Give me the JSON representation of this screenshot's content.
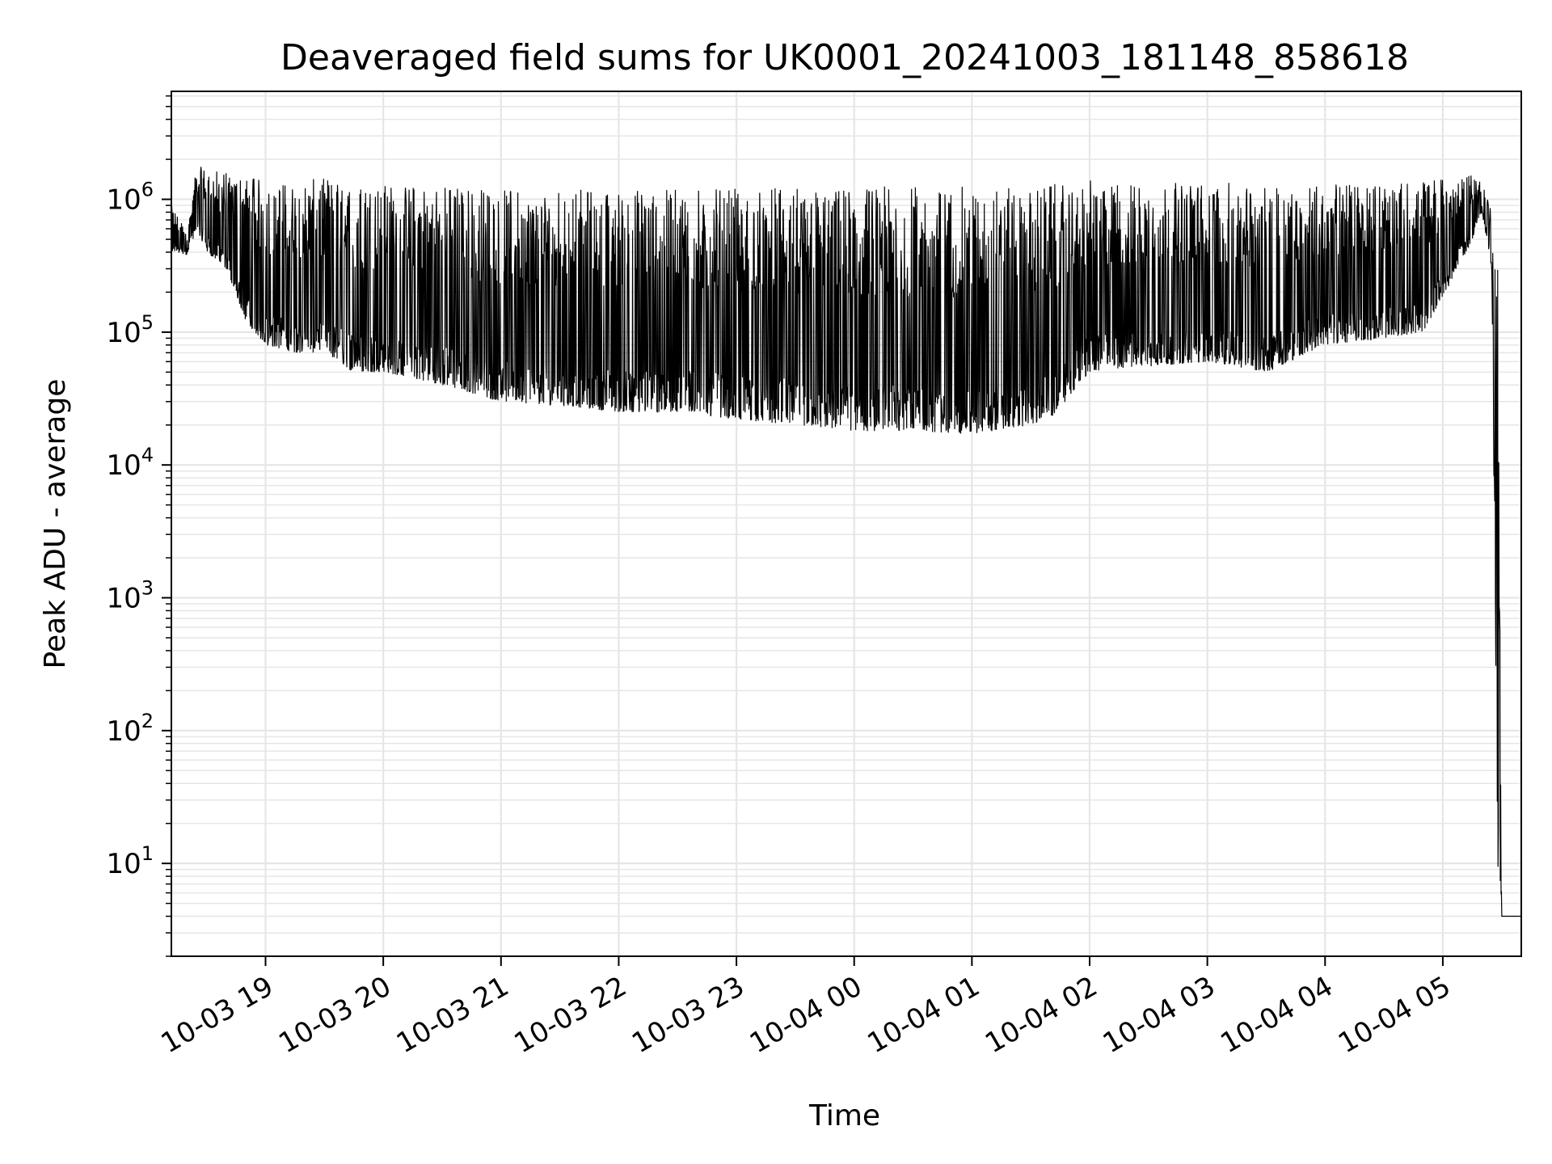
{
  "chart_data": {
    "type": "line",
    "title": "Deaveraged field sums for UK0001_20241003_181148_858618",
    "xlabel": "Time",
    "ylabel": "Peak ADU - average",
    "y_scale": "log",
    "grid": true,
    "grid_color": "#e6e6e6",
    "line_color": "#000000",
    "xlim": [
      "2024-10-03 18:12",
      "2024-10-04 05:40"
    ],
    "ylim": [
      2,
      6500000.0
    ],
    "x_ticks": [
      {
        "value": "2024-10-03 19:00",
        "label": "10-03 19"
      },
      {
        "value": "2024-10-03 20:00",
        "label": "10-03 20"
      },
      {
        "value": "2024-10-03 21:00",
        "label": "10-03 21"
      },
      {
        "value": "2024-10-03 22:00",
        "label": "10-03 22"
      },
      {
        "value": "2024-10-03 23:00",
        "label": "10-03 23"
      },
      {
        "value": "2024-10-04 00:00",
        "label": "10-04 00"
      },
      {
        "value": "2024-10-04 01:00",
        "label": "10-04 01"
      },
      {
        "value": "2024-10-04 02:00",
        "label": "10-04 02"
      },
      {
        "value": "2024-10-04 03:00",
        "label": "10-04 03"
      },
      {
        "value": "2024-10-04 04:00",
        "label": "10-04 04"
      },
      {
        "value": "2024-10-04 05:00",
        "label": "10-04 05"
      }
    ],
    "y_ticks": [
      {
        "value": 10,
        "base": "10",
        "exp": "1"
      },
      {
        "value": 100,
        "base": "10",
        "exp": "2"
      },
      {
        "value": 1000,
        "base": "10",
        "exp": "3"
      },
      {
        "value": 10000,
        "base": "10",
        "exp": "4"
      },
      {
        "value": 100000,
        "base": "10",
        "exp": "5"
      },
      {
        "value": 1000000,
        "base": "10",
        "exp": "6"
      }
    ],
    "series": [
      {
        "x": [
          "2024-10-03 18:12",
          "2024-10-03 18:20",
          "2024-10-03 18:25",
          "2024-10-03 18:30",
          "2024-10-03 18:40",
          "2024-10-03 18:50",
          "2024-10-03 19:00",
          "2024-10-03 19:15",
          "2024-10-03 19:30",
          "2024-10-03 19:45",
          "2024-10-03 20:00",
          "2024-10-03 20:30",
          "2024-10-03 21:00",
          "2024-10-03 21:30",
          "2024-10-03 22:00",
          "2024-10-03 22:30",
          "2024-10-03 23:00",
          "2024-10-03 23:30",
          "2024-10-04 00:00",
          "2024-10-04 00:30",
          "2024-10-04 01:00",
          "2024-10-04 01:30",
          "2024-10-04 01:40",
          "2024-10-04 02:00",
          "2024-10-04 02:30",
          "2024-10-04 03:00",
          "2024-10-04 03:30",
          "2024-10-04 04:00",
          "2024-10-04 04:30",
          "2024-10-04 04:50",
          "2024-10-04 05:05",
          "2024-10-04 05:15",
          "2024-10-04 05:20",
          "2024-10-04 05:25",
          "2024-10-04 05:28",
          "2024-10-04 05:30",
          "2024-10-04 05:40"
        ],
        "low": [
          400000,
          380000,
          600000,
          400000,
          300000,
          120000,
          80000,
          70000,
          70000,
          50000,
          50000,
          40000,
          30000,
          28000,
          25000,
          25000,
          22000,
          20000,
          18000,
          18000,
          17000,
          20000,
          22000,
          50000,
          55000,
          60000,
          50000,
          80000,
          90000,
          100000,
          250000,
          500000,
          800000,
          300000,
          10,
          4,
          4
        ],
        "high": [
          900000,
          600000,
          1800000,
          1700000,
          1600000,
          1500000,
          1400000,
          1300000,
          1500000,
          1300000,
          1300000,
          1300000,
          1200000,
          1200000,
          1200000,
          1200000,
          1200000,
          1250000,
          1250000,
          1250000,
          1250000,
          1200000,
          1300000,
          1400000,
          1350000,
          1350000,
          1300000,
          1350000,
          1350000,
          1400000,
          1500000,
          1600000,
          1500000,
          800000,
          300000,
          4,
          4
        ]
      }
    ]
  }
}
